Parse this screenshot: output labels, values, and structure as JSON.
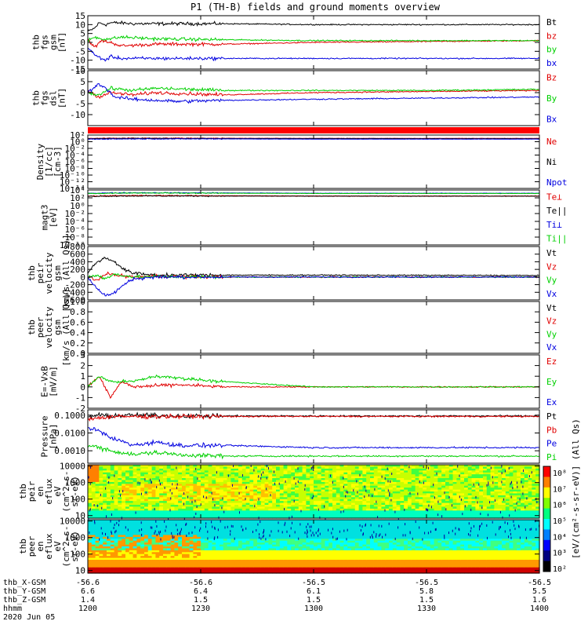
{
  "title": "P1 (TH-B) fields and ground moments overview",
  "colors": {
    "black": "#000000",
    "red": "#e00000",
    "green": "#00d000",
    "blue": "#0000e0"
  },
  "chart_data": {
    "type": "line",
    "panels": [
      {
        "id": "fgs-gsm",
        "ylabel": [
          "thb",
          "fgs",
          "gsm",
          "[nT]"
        ],
        "yscale": "linear",
        "ylim": [
          -15,
          15
        ],
        "ticks": [
          15,
          10,
          5,
          0,
          -5,
          -10,
          -15
        ],
        "tick_labels": [
          "15",
          "10",
          "5",
          "0",
          "-5",
          "-10",
          "-15"
        ],
        "series": [
          {
            "name": "Bt",
            "color": "#000000",
            "t": [
              0,
              3,
              5,
              8,
              10,
              14,
              20,
              30,
              60,
              100,
              200
            ],
            "v": [
              6,
              8,
              11,
              10,
              11,
              11,
              10.5,
              10.5,
              10.5,
              10,
              10
            ]
          },
          {
            "name": "bz",
            "color": "#e00000",
            "t": [
              0,
              3,
              6,
              10,
              15,
              30,
              60,
              100,
              200
            ],
            "v": [
              2,
              -3,
              1,
              0,
              -2,
              -1,
              -1,
              0,
              1
            ]
          },
          {
            "name": "by",
            "color": "#00d000",
            "t": [
              0,
              3,
              6,
              10,
              15,
              30,
              60,
              100,
              200
            ],
            "v": [
              1,
              3,
              2,
              2,
              3,
              2,
              1.5,
              1,
              1
            ]
          },
          {
            "name": "bx",
            "color": "#0000e0",
            "t": [
              0,
              3,
              6,
              8,
              10,
              15,
              30,
              60,
              100,
              200
            ],
            "v": [
              -3,
              -7,
              -9,
              -10,
              -8,
              -9,
              -9,
              -9,
              -9,
              -9
            ]
          }
        ]
      },
      {
        "id": "fgs-dsl",
        "ylabel": [
          "thb",
          "fgs",
          "dsl",
          "[nT]"
        ],
        "yscale": "linear",
        "ylim": [
          -15,
          10
        ],
        "ticks": [
          10,
          5,
          0,
          -5,
          -10
        ],
        "tick_labels": [
          "10",
          "5",
          "0",
          "-5",
          "-10"
        ],
        "series": [
          {
            "name": "Bz",
            "color": "#e00000",
            "t": [
              0,
              5,
              10,
              20,
              30,
              60,
              100,
              150,
              200
            ],
            "v": [
              1,
              -2,
              0,
              -1,
              0,
              -1,
              0,
              0.5,
              1
            ]
          },
          {
            "name": "By",
            "color": "#00d000",
            "t": [
              0,
              5,
              10,
              20,
              30,
              60,
              100,
              150,
              200
            ],
            "v": [
              0,
              -1,
              2,
              1,
              2,
              1,
              1,
              1,
              1.5
            ]
          },
          {
            "name": "Bx",
            "color": "#0000e0",
            "t": [
              0,
              5,
              8,
              12,
              20,
              40,
              60,
              100,
              150,
              200
            ],
            "v": [
              0,
              4,
              2,
              -2,
              -3,
              -4,
              -3.5,
              -3,
              -2.5,
              -2
            ]
          }
        ]
      },
      {
        "id": "state-bar",
        "type": "bar-strip",
        "ylabel": [],
        "bar_color": "#ff0000"
      },
      {
        "id": "density",
        "ylabel": [
          "Density",
          "[1/cc]",
          "[cm-3]"
        ],
        "yscale": "log",
        "ylim": [
          1e-14,
          100.0
        ],
        "ticks": [
          100,
          1,
          0.01,
          0.0001,
          1e-06,
          1e-08,
          1e-10,
          1e-12,
          1e-14
        ],
        "tick_labels": [
          "10²",
          "10⁰",
          "10⁻²",
          "10⁻⁴",
          "10⁻⁶",
          "10⁻⁸",
          "10⁻¹⁰",
          "10⁻¹²",
          "10⁻¹⁴"
        ],
        "series": [
          {
            "name": "Ne",
            "color": "#e00000",
            "t": [
              0,
              20,
              60,
              100,
              200
            ],
            "v": [
              10,
              12,
              11,
              10,
              10
            ]
          },
          {
            "name": "Ni",
            "color": "#000000",
            "t": [
              0,
              20,
              60,
              100,
              200
            ],
            "v": [
              8,
              10,
              9,
              9,
              8
            ]
          },
          {
            "name": "Npot",
            "color": "#0000e0",
            "t": [
              0,
              20,
              60,
              100,
              200
            ],
            "v": [
              6,
              7,
              7,
              6,
              6
            ]
          }
        ]
      },
      {
        "id": "temperature",
        "ylabel": [
          "magt3",
          "[eV]"
        ],
        "yscale": "log",
        "ylim": [
          1e-10,
          10000.0
        ],
        "ticks": [
          10000.0,
          100,
          1,
          0.01,
          0.0001,
          1e-06,
          1e-08,
          1e-10
        ],
        "tick_labels": [
          "10⁴",
          "10²",
          "10⁰",
          "10⁻²",
          "10⁻⁴",
          "10⁻⁶",
          "10⁻⁸",
          "10⁻¹⁰"
        ],
        "series": [
          {
            "name": "Te⊥",
            "color": "#e00000",
            "t": [
              0,
              20,
              60,
              100,
              200
            ],
            "v": [
              300,
              400,
              350,
              300,
              300
            ]
          },
          {
            "name": "Te||",
            "color": "#000000",
            "t": [
              0,
              20,
              60,
              100,
              200
            ],
            "v": [
              250,
              300,
              280,
              260,
              260
            ]
          },
          {
            "name": "Ti⊥",
            "color": "#0000e0",
            "t": [
              0,
              20,
              60,
              100,
              200
            ],
            "v": [
              1500,
              2000,
              1800,
              1500,
              1500
            ]
          },
          {
            "name": "Ti||",
            "color": "#00d000",
            "t": [
              0,
              20,
              60,
              100,
              200
            ],
            "v": [
              1200,
              1800,
              1500,
              1300,
              1300
            ]
          }
        ]
      },
      {
        "id": "peir-velocity",
        "ylabel": [
          "thb",
          "peir",
          "velocity",
          "gsm",
          "[km/s (All Qs)]"
        ],
        "yscale": "linear",
        "ylim": [
          -600,
          800
        ],
        "ticks": [
          800,
          600,
          400,
          200,
          0,
          -200,
          -400,
          -600
        ],
        "tick_labels": [
          "800",
          "600",
          "400",
          "200",
          "0",
          "-200",
          "-400",
          "-600"
        ],
        "series": [
          {
            "name": "Vt",
            "color": "#000000",
            "t": [
              0,
              4,
              8,
              12,
              16,
              20,
              30,
              60,
              100,
              200
            ],
            "v": [
              100,
              400,
              500,
              400,
              200,
              100,
              50,
              50,
              50,
              40
            ]
          },
          {
            "name": "Vz",
            "color": "#e00000",
            "t": [
              0,
              4,
              8,
              12,
              20,
              30,
              60,
              100,
              200
            ],
            "v": [
              0,
              -100,
              100,
              50,
              0,
              20,
              0,
              0,
              0
            ]
          },
          {
            "name": "Vy",
            "color": "#00d000",
            "t": [
              0,
              4,
              8,
              12,
              20,
              30,
              60,
              100,
              200
            ],
            "v": [
              0,
              50,
              -50,
              80,
              0,
              10,
              0,
              0,
              0
            ]
          },
          {
            "name": "Vx",
            "color": "#0000e0",
            "t": [
              0,
              4,
              8,
              12,
              16,
              20,
              30,
              60,
              100,
              200
            ],
            "v": [
              0,
              -300,
              -500,
              -400,
              -200,
              -50,
              0,
              0,
              0,
              0
            ]
          }
        ]
      },
      {
        "id": "peer-velocity",
        "ylabel": [
          "thb",
          "peer",
          "velocity",
          "gsm",
          "[km/s (All Qs)]"
        ],
        "yscale": "linear",
        "ylim": [
          0,
          1
        ],
        "ticks": [
          1.0,
          0.8,
          0.6,
          0.4,
          0.2,
          0.0
        ],
        "tick_labels": [
          "1.0",
          "0.8",
          "0.6",
          "0.4",
          "0.2",
          "0.0"
        ],
        "series": [
          {
            "name": "Vt",
            "color": "#000000",
            "t": [],
            "v": []
          },
          {
            "name": "Vz",
            "color": "#e00000",
            "t": [],
            "v": []
          },
          {
            "name": "Vy",
            "color": "#00d000",
            "t": [],
            "v": []
          },
          {
            "name": "Vx",
            "color": "#0000e0",
            "t": [],
            "v": []
          }
        ]
      },
      {
        "id": "efield",
        "ylabel": [
          "E=-VxB",
          "[mV/m]"
        ],
        "yscale": "linear",
        "ylim": [
          -2,
          3
        ],
        "ticks": [
          3,
          2,
          1,
          0,
          -1,
          -2
        ],
        "tick_labels": [
          "3",
          "2",
          "1",
          "0",
          "-1",
          "-2"
        ],
        "series": [
          {
            "name": "Ez",
            "color": "#e00000",
            "t": [
              0,
              5,
              10,
              15,
              20,
              40,
              60,
              100,
              200
            ],
            "v": [
              0,
              1,
              -1,
              0.5,
              0,
              0.2,
              0,
              0,
              0
            ]
          },
          {
            "name": "Ey",
            "color": "#00d000",
            "t": [
              0,
              5,
              10,
              20,
              30,
              60,
              100,
              200
            ],
            "v": [
              0,
              1,
              0.5,
              0.5,
              1,
              0.5,
              0,
              0
            ]
          },
          {
            "name": "Ex",
            "color": "#0000e0",
            "t": [],
            "v": []
          }
        ]
      },
      {
        "id": "pressure",
        "ylabel": [
          "Pressure",
          "[nPa]"
        ],
        "yscale": "log",
        "ylim": [
          0.0002,
          0.2
        ],
        "ticks": [
          0.1,
          0.01,
          0.001
        ],
        "tick_labels": [
          "0.1000",
          "0.0100",
          "0.0010"
        ],
        "series": [
          {
            "name": "Pt",
            "color": "#000000",
            "t": [
              0,
              5,
              10,
              20,
              40,
              60,
              100,
              200
            ],
            "v": [
              0.08,
              0.1,
              0.09,
              0.1,
              0.09,
              0.09,
              0.09,
              0.09
            ]
          },
          {
            "name": "Pb",
            "color": "#e00000",
            "t": [
              0,
              5,
              10,
              20,
              40,
              60,
              100,
              200
            ],
            "v": [
              0.06,
              0.07,
              0.08,
              0.085,
              0.085,
              0.085,
              0.085,
              0.085
            ]
          },
          {
            "name": "Pe",
            "color": "#0000e0",
            "t": [
              0,
              10,
              20,
              30,
              40,
              50,
              60,
              100,
              200
            ],
            "v": [
              0.02,
              0.005,
              0.002,
              0.003,
              0.002,
              0.002,
              0.002,
              0.0015,
              0.0015
            ]
          },
          {
            "name": "Pi",
            "color": "#00d000",
            "t": [
              0,
              10,
              20,
              30,
              40,
              60,
              100,
              200
            ],
            "v": [
              0.002,
              0.001,
              0.0006,
              0.0008,
              0.0006,
              0.0005,
              0.0005,
              0.0005
            ]
          }
        ]
      },
      {
        "id": "peir-spec",
        "type": "spectrogram",
        "ylabel": [
          "thb",
          "peir",
          "en",
          "eflux",
          "eV",
          "(cm^2-s-",
          "sr-eV)"
        ],
        "ylim": [
          7,
          12000
        ],
        "ticks": [
          10000,
          1000,
          100,
          10
        ],
        "tick_labels": [
          "10000",
          "1000",
          "100",
          "10"
        ]
      },
      {
        "id": "peer-spec",
        "type": "spectrogram",
        "ylabel": [
          "thb",
          "peer",
          "en",
          "eflux",
          "eV",
          "(cm^2-s-",
          "sr-eV)"
        ],
        "ylim": [
          7,
          12000
        ],
        "ticks": [
          10000,
          1000,
          100,
          10
        ],
        "tick_labels": [
          "10000",
          "1000",
          "100",
          "10"
        ]
      }
    ],
    "colorbar": {
      "tick_labels": [
        "10⁸",
        "10⁷",
        "10⁶",
        "10⁵",
        "10⁴",
        "10³",
        "10²"
      ],
      "label": "[eV/(cm²-s-sr-eV)] (All Qs)"
    },
    "xaxis": {
      "row_labels": [
        "thb_X-GSM",
        "thb_Y-GSM",
        "thb_Z-GSM",
        "hhmm",
        "2020 Jun 05"
      ],
      "columns": [
        {
          "x": "-56.6",
          "y": "6.6",
          "z": "1.4",
          "hhmm": "1200"
        },
        {
          "x": "-56.6",
          "y": "6.4",
          "z": "1.5",
          "hhmm": "1230"
        },
        {
          "x": "-56.5",
          "y": "6.1",
          "z": "1.5",
          "hhmm": "1300"
        },
        {
          "x": "-56.5",
          "y": "5.8",
          "z": "1.5",
          "hhmm": "1330"
        },
        {
          "x": "-56.5",
          "y": "5.5",
          "z": "1.6",
          "hhmm": "1400"
        }
      ]
    }
  }
}
